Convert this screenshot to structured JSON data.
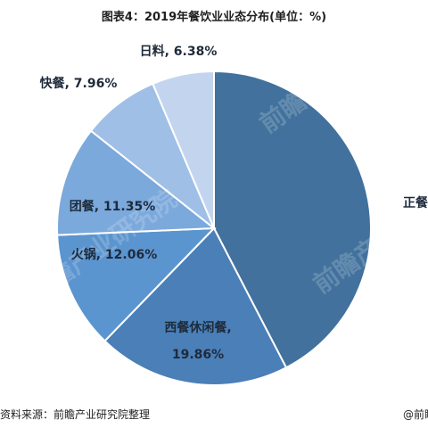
{
  "chart_data": {
    "type": "pie",
    "title": "图表4：2019年餐饮业业态分布(单位：%)",
    "categories": [
      "正餐",
      "西餐休闲餐",
      "火锅",
      "团餐",
      "快餐",
      "日料"
    ],
    "values": [
      42.39,
      19.86,
      12.06,
      11.35,
      7.96,
      6.38
    ],
    "labels": [
      "正餐,",
      "西餐休闲餐,\n19.86%",
      "火锅, 12.06%",
      "团餐, 11.35%",
      "快餐, 7.96%",
      "日料, 6.38%"
    ],
    "colors": [
      "#41719c",
      "#4a7fb8",
      "#5b95cf",
      "#7ba9dc",
      "#9fbfe6",
      "#c3d5ee"
    ],
    "start_angle_deg": 0,
    "direction": "clockwise",
    "legend": "none"
  },
  "watermark": {
    "text": "前瞻产业研究院"
  },
  "footer": {
    "source": "资料来源：前瞻产业研究院整理",
    "handle": "@前瞻经济学人"
  }
}
